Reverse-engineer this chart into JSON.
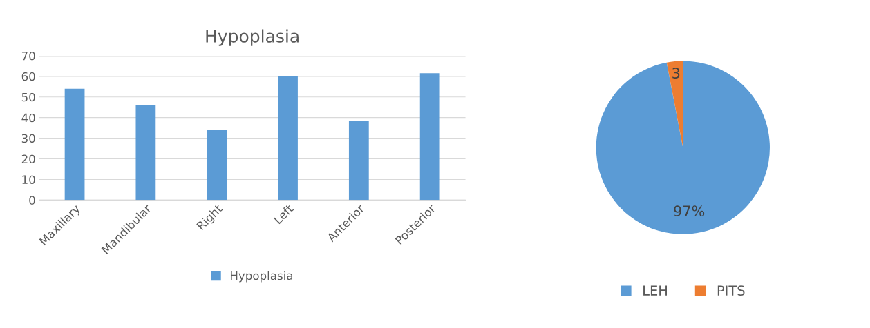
{
  "chart_data": [
    {
      "type": "bar",
      "title": "Hypoplasia",
      "categories": [
        "Maxillary",
        "Mandibular",
        "Right",
        "Left",
        "Anterior",
        "Posterior"
      ],
      "series": [
        {
          "name": "Hypoplasia",
          "color": "#5b9bd5",
          "values": [
            54,
            46,
            34,
            60,
            38.5,
            61.5
          ]
        }
      ],
      "ylim": [
        0,
        70
      ],
      "yticks": [
        0,
        10,
        20,
        30,
        40,
        50,
        60,
        70
      ],
      "grid": "y",
      "legend": "bottom"
    },
    {
      "type": "pie",
      "categories": [
        "LEH",
        "PITS"
      ],
      "values": [
        97,
        3
      ],
      "colors": [
        "#5b9bd5",
        "#ed7d31"
      ],
      "value_labels": [
        "97%",
        "3"
      ],
      "legend": "bottom"
    }
  ]
}
